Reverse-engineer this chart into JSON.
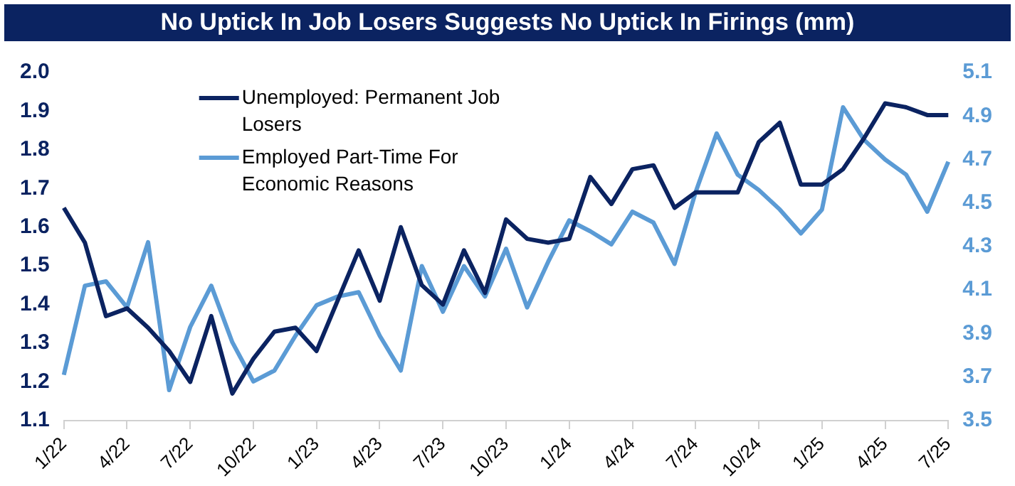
{
  "chart_data": {
    "type": "line",
    "title": "No Uptick In Job Losers Suggests No Uptick In Firings (mm)",
    "categories": [
      "1/22",
      null,
      null,
      "4/22",
      null,
      null,
      "7/22",
      null,
      null,
      "10/22",
      null,
      null,
      "1/23",
      null,
      null,
      "4/23",
      null,
      null,
      "7/23",
      null,
      null,
      "10/23",
      null,
      null,
      "1/24",
      null,
      null,
      "4/24",
      null,
      null,
      "7/24",
      null,
      null,
      "10/24",
      null,
      null,
      "1/25",
      null,
      null,
      "4/25",
      null,
      null,
      "7/25"
    ],
    "series": [
      {
        "name": "Unemployed: Permanent Job Losers",
        "color": "#0b2361",
        "axis": "y",
        "values": [
          1.65,
          1.56,
          1.37,
          1.39,
          1.34,
          1.28,
          1.2,
          1.37,
          1.17,
          1.26,
          1.33,
          1.34,
          1.28,
          1.41,
          1.54,
          1.41,
          1.6,
          1.45,
          1.4,
          1.54,
          1.43,
          1.62,
          1.57,
          1.56,
          1.57,
          1.73,
          1.66,
          1.75,
          1.76,
          1.65,
          1.69,
          1.69,
          1.69,
          1.82,
          1.87,
          1.71,
          1.71,
          1.75,
          1.83,
          1.92,
          1.91,
          1.89,
          1.89
        ]
      },
      {
        "name": "Employed Part-Time For Economic Reasons",
        "color": "#5b9bd5",
        "axis": "y2",
        "values": [
          3.71,
          4.12,
          4.14,
          4.02,
          4.32,
          3.64,
          3.93,
          4.12,
          3.86,
          3.68,
          3.73,
          3.89,
          4.03,
          4.07,
          4.09,
          3.89,
          3.73,
          4.21,
          4.0,
          4.21,
          4.07,
          4.29,
          4.02,
          4.23,
          4.42,
          4.37,
          4.31,
          4.46,
          4.41,
          4.22,
          4.55,
          4.82,
          4.63,
          4.56,
          4.47,
          4.36,
          4.47,
          4.94,
          4.79,
          4.7,
          4.63,
          4.46,
          4.69
        ]
      }
    ],
    "ylim": [
      1.1,
      2.0
    ],
    "yticks": [
      1.1,
      1.2,
      1.3,
      1.4,
      1.5,
      1.6,
      1.7,
      1.8,
      1.9,
      {
        "value": 2.0,
        "label": "2.0"
      }
    ],
    "y2lim": [
      3.5,
      5.1
    ],
    "y2ticks": [
      3.5,
      3.7,
      3.9,
      4.1,
      4.3,
      4.5,
      4.7,
      4.9,
      5.1
    ],
    "grid": false,
    "legend": "top left",
    "marker": "none",
    "line_style": "solid"
  }
}
